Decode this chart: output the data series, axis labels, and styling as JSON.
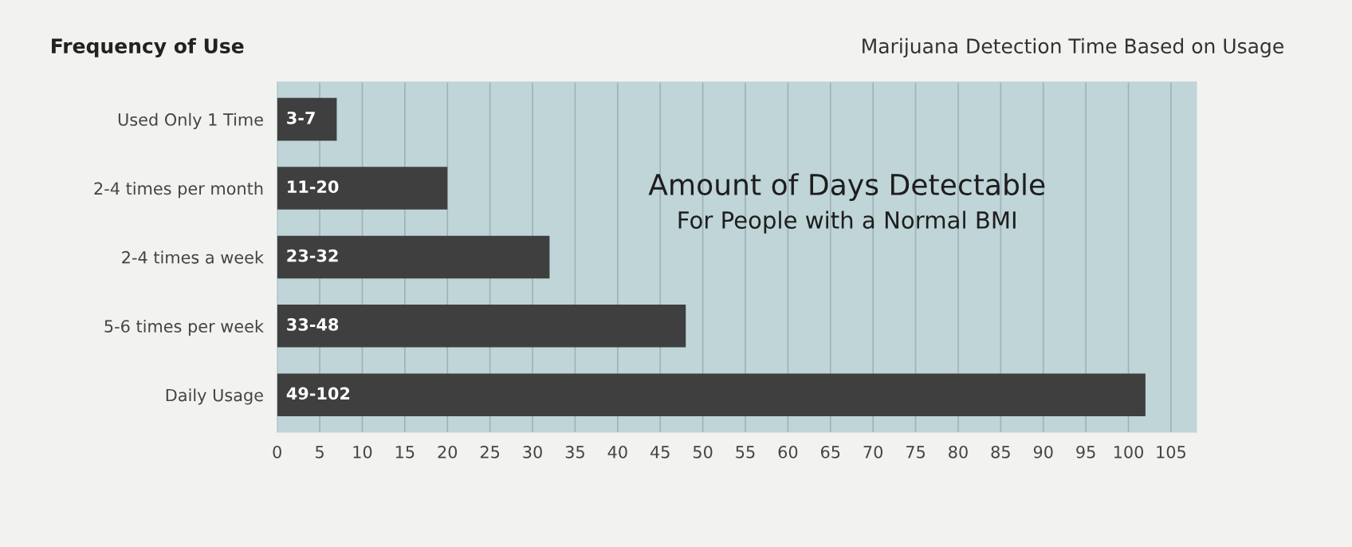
{
  "chart_data": {
    "type": "bar",
    "orientation": "horizontal",
    "title": "Frequency of Use",
    "subtitle": "Marijuana Detection Time Based on Usage",
    "categories": [
      "Used Only 1 Time",
      "2-4 times per month",
      "2-4 times a week",
      "5-6 times per week",
      "Daily Usage"
    ],
    "values": [
      7,
      20,
      32,
      48,
      102
    ],
    "value_labels": [
      "3-7",
      "11-20",
      "23-32",
      "33-48",
      "49-102"
    ],
    "color": "#3f3f3f",
    "xlim": [
      0,
      108
    ],
    "xticks": [
      0,
      5,
      10,
      15,
      20,
      25,
      30,
      35,
      40,
      45,
      50,
      55,
      60,
      65,
      70,
      75,
      80,
      85,
      90,
      95,
      100,
      105
    ],
    "grid": "x",
    "annotations": [
      "Amount of Days Detectable",
      "For People with a Normal BMI"
    ]
  }
}
